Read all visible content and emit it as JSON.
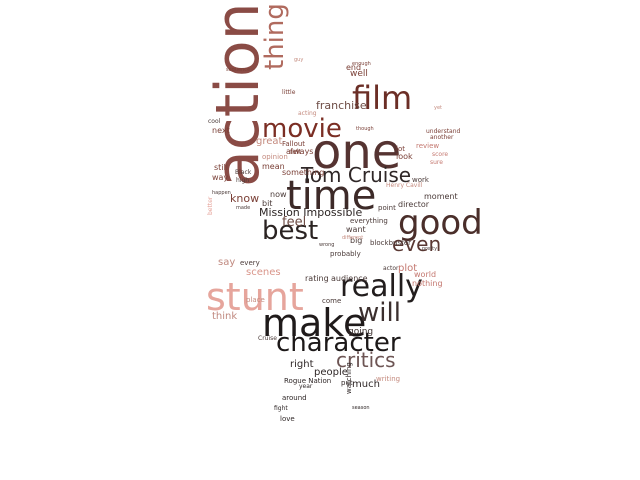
{
  "cloud": {
    "words": [
      {
        "text": "action",
        "size": 60,
        "color": "#8a4b45",
        "rot": -90
      },
      {
        "text": "one",
        "size": 48,
        "color": "#553331",
        "rot": 0
      },
      {
        "text": "time",
        "size": 40,
        "color": "#3d2a28",
        "rot": 0
      },
      {
        "text": "stunt",
        "size": 38,
        "color": "#e6a59c",
        "rot": 0
      },
      {
        "text": "make",
        "size": 38,
        "color": "#1f1a1a",
        "rot": 0
      },
      {
        "text": "good",
        "size": 34,
        "color": "#4a2e2a",
        "rot": 0
      },
      {
        "text": "film",
        "size": 32,
        "color": "#6b2e26",
        "rot": 0
      },
      {
        "text": "really",
        "size": 30,
        "color": "#221d1d",
        "rot": 0
      },
      {
        "text": "movie",
        "size": 26,
        "color": "#7b2e24",
        "rot": 0
      },
      {
        "text": "best",
        "size": 26,
        "color": "#2a2322",
        "rot": 0
      },
      {
        "text": "character",
        "size": 26,
        "color": "#1c1818",
        "rot": 0
      },
      {
        "text": "will",
        "size": 26,
        "color": "#3b2f2e",
        "rot": 0
      },
      {
        "text": "thing",
        "size": 26,
        "color": "#b06a5e",
        "rot": -90
      },
      {
        "text": "Tom Cruise",
        "size": 20,
        "color": "#2f2727",
        "rot": 0
      },
      {
        "text": "critics",
        "size": 20,
        "color": "#6d5554",
        "rot": 0
      },
      {
        "text": "even",
        "size": 20,
        "color": "#5a3833",
        "rot": 0
      },
      {
        "text": "franchise",
        "size": 11,
        "color": "#6d4c45",
        "rot": 0
      },
      {
        "text": "Mission Impossible",
        "size": 11,
        "color": "#2c2524",
        "rot": 0
      },
      {
        "text": "feel",
        "size": 13,
        "color": "#6d4c45",
        "rot": 0
      },
      {
        "text": "know",
        "size": 11,
        "color": "#7a3f36",
        "rot": 0
      },
      {
        "text": "great",
        "size": 10,
        "color": "#c48a7e",
        "rot": 0
      },
      {
        "text": "scenes",
        "size": 10,
        "color": "#d9958a",
        "rot": 0
      },
      {
        "text": "think",
        "size": 10,
        "color": "#c0897f",
        "rot": 0
      },
      {
        "text": "say",
        "size": 10,
        "color": "#c0897f",
        "rot": 0
      },
      {
        "text": "plot",
        "size": 10,
        "color": "#c47870",
        "rot": 0
      },
      {
        "text": "people",
        "size": 10,
        "color": "#2f2727",
        "rot": 0
      },
      {
        "text": "much",
        "size": 10,
        "color": "#2f2727",
        "rot": 0
      },
      {
        "text": "right",
        "size": 10,
        "color": "#2f2727",
        "rot": 0
      },
      {
        "text": "going",
        "size": 9,
        "color": "#3b2f2e",
        "rot": 0
      },
      {
        "text": "well",
        "size": 9,
        "color": "#7a3f36",
        "rot": 0
      },
      {
        "text": "end",
        "size": 8,
        "color": "#7a3f36",
        "rot": 0
      },
      {
        "text": "next",
        "size": 8,
        "color": "#7a3f36",
        "rot": 0
      },
      {
        "text": "way",
        "size": 8,
        "color": "#7a3f36",
        "rot": 0
      },
      {
        "text": "still",
        "size": 8,
        "color": "#7a3f36",
        "rot": 0
      },
      {
        "text": "always",
        "size": 8,
        "color": "#7a3f36",
        "rot": 0
      },
      {
        "text": "now",
        "size": 8,
        "color": "#4a3a38",
        "rot": 0
      },
      {
        "text": "bit",
        "size": 8,
        "color": "#4a3a38",
        "rot": 0
      },
      {
        "text": "mean",
        "size": 8,
        "color": "#7a3f36",
        "rot": 0
      },
      {
        "text": "something",
        "size": 8,
        "color": "#7a3f36",
        "rot": 0
      },
      {
        "text": "Fallout",
        "size": 7,
        "color": "#7a3f36",
        "rot": 0
      },
      {
        "text": "opinion",
        "size": 7,
        "color": "#c48a7e",
        "rot": 0
      },
      {
        "text": "felt",
        "size": 7,
        "color": "#7a3f36",
        "rot": 0
      },
      {
        "text": "want",
        "size": 8,
        "color": "#4a3a38",
        "rot": 0
      },
      {
        "text": "big",
        "size": 8,
        "color": "#4a3a38",
        "rot": 0
      },
      {
        "text": "blockbuster",
        "size": 7,
        "color": "#4a3a38",
        "rot": 0
      },
      {
        "text": "everything",
        "size": 7,
        "color": "#4a3a38",
        "rot": 0
      },
      {
        "text": "probably",
        "size": 7,
        "color": "#4a3a38",
        "rot": 0
      },
      {
        "text": "rating",
        "size": 8,
        "color": "#4a3a38",
        "rot": 0
      },
      {
        "text": "audience",
        "size": 8,
        "color": "#4a3a38",
        "rot": 0
      },
      {
        "text": "come",
        "size": 7,
        "color": "#4a3a38",
        "rot": 0
      },
      {
        "text": "place",
        "size": 7,
        "color": "#c48a7e",
        "rot": 0
      },
      {
        "text": "every",
        "size": 7,
        "color": "#4a3a38",
        "rot": 0
      },
      {
        "text": "world",
        "size": 8,
        "color": "#c47870",
        "rot": 0
      },
      {
        "text": "nothing",
        "size": 8,
        "color": "#c47870",
        "rot": 0
      },
      {
        "text": "director",
        "size": 8,
        "color": "#4a3a38",
        "rot": 0
      },
      {
        "text": "moment",
        "size": 8,
        "color": "#4a3a38",
        "rot": 0
      },
      {
        "text": "work",
        "size": 7,
        "color": "#4a3a38",
        "rot": 0
      },
      {
        "text": "point",
        "size": 7,
        "color": "#4a3a38",
        "rot": 0
      },
      {
        "text": "look",
        "size": 8,
        "color": "#7a3f36",
        "rot": 0
      },
      {
        "text": "lot",
        "size": 7,
        "color": "#7a3f36",
        "rot": 0
      },
      {
        "text": "review",
        "size": 7,
        "color": "#c47870",
        "rot": 0
      },
      {
        "text": "score",
        "size": 6,
        "color": "#c47870",
        "rot": 0
      },
      {
        "text": "sure",
        "size": 6,
        "color": "#c47870",
        "rot": 0
      },
      {
        "text": "understand",
        "size": 6,
        "color": "#7a3f36",
        "rot": 0
      },
      {
        "text": "another",
        "size": 6,
        "color": "#7a3f36",
        "rot": 0
      },
      {
        "text": "little",
        "size": 6,
        "color": "#7a3f36",
        "rot": 0
      },
      {
        "text": "acting",
        "size": 6,
        "color": "#c48a7e",
        "rot": 0
      },
      {
        "text": "Black",
        "size": 6,
        "color": "#4a3a38",
        "rot": 0
      },
      {
        "text": "high",
        "size": 6,
        "color": "#4a3a38",
        "rot": 0
      },
      {
        "text": "cool",
        "size": 6,
        "color": "#4a3a38",
        "rot": 0
      },
      {
        "text": "Rogue Nation",
        "size": 7,
        "color": "#2f2727",
        "rot": 0
      },
      {
        "text": "around",
        "size": 7,
        "color": "#2f2727",
        "rot": 0
      },
      {
        "text": "love",
        "size": 7,
        "color": "#2f2727",
        "rot": 0
      },
      {
        "text": "fight",
        "size": 6,
        "color": "#2f2727",
        "rot": 0
      },
      {
        "text": "put",
        "size": 7,
        "color": "#2f2727",
        "rot": 0
      },
      {
        "text": "year",
        "size": 6,
        "color": "#2f2727",
        "rot": 0
      },
      {
        "text": "writing",
        "size": 7,
        "color": "#c48a7e",
        "rot": 0
      },
      {
        "text": "watching",
        "size": 7,
        "color": "#2f2727",
        "rot": -90
      },
      {
        "text": "actor",
        "size": 6,
        "color": "#4a3a38",
        "rot": 0
      },
      {
        "text": "Cruise",
        "size": 6,
        "color": "#4a3a38",
        "rot": 0
      },
      {
        "text": "Henry Cavill",
        "size": 6,
        "color": "#c48a7e",
        "rot": 0
      },
      {
        "text": "sequence",
        "size": 5,
        "color": "#7a3f36",
        "rot": 0
      },
      {
        "text": "enough",
        "size": 5,
        "color": "#7a3f36",
        "rot": 0
      },
      {
        "text": "guy",
        "size": 5,
        "color": "#c48a7e",
        "rot": 0
      },
      {
        "text": "yet",
        "size": 5,
        "color": "#c48a7e",
        "rot": 0
      },
      {
        "text": "though",
        "size": 5,
        "color": "#7a3f36",
        "rot": 0
      },
      {
        "text": "pretty",
        "size": 5,
        "color": "#4a3a38",
        "rot": 0
      },
      {
        "text": "wrong",
        "size": 5,
        "color": "#4a3a38",
        "rot": 0
      },
      {
        "text": "different",
        "size": 5,
        "color": "#c48a7e",
        "rot": 0
      },
      {
        "text": "made",
        "size": 5,
        "color": "#4a3a38",
        "rot": 0
      },
      {
        "text": "better",
        "size": 6,
        "color": "#e6a59c",
        "rot": -90
      },
      {
        "text": "happen",
        "size": 5,
        "color": "#4a3a38",
        "rot": 0
      },
      {
        "text": "season",
        "size": 5,
        "color": "#2f2727",
        "rot": 0
      }
    ]
  }
}
